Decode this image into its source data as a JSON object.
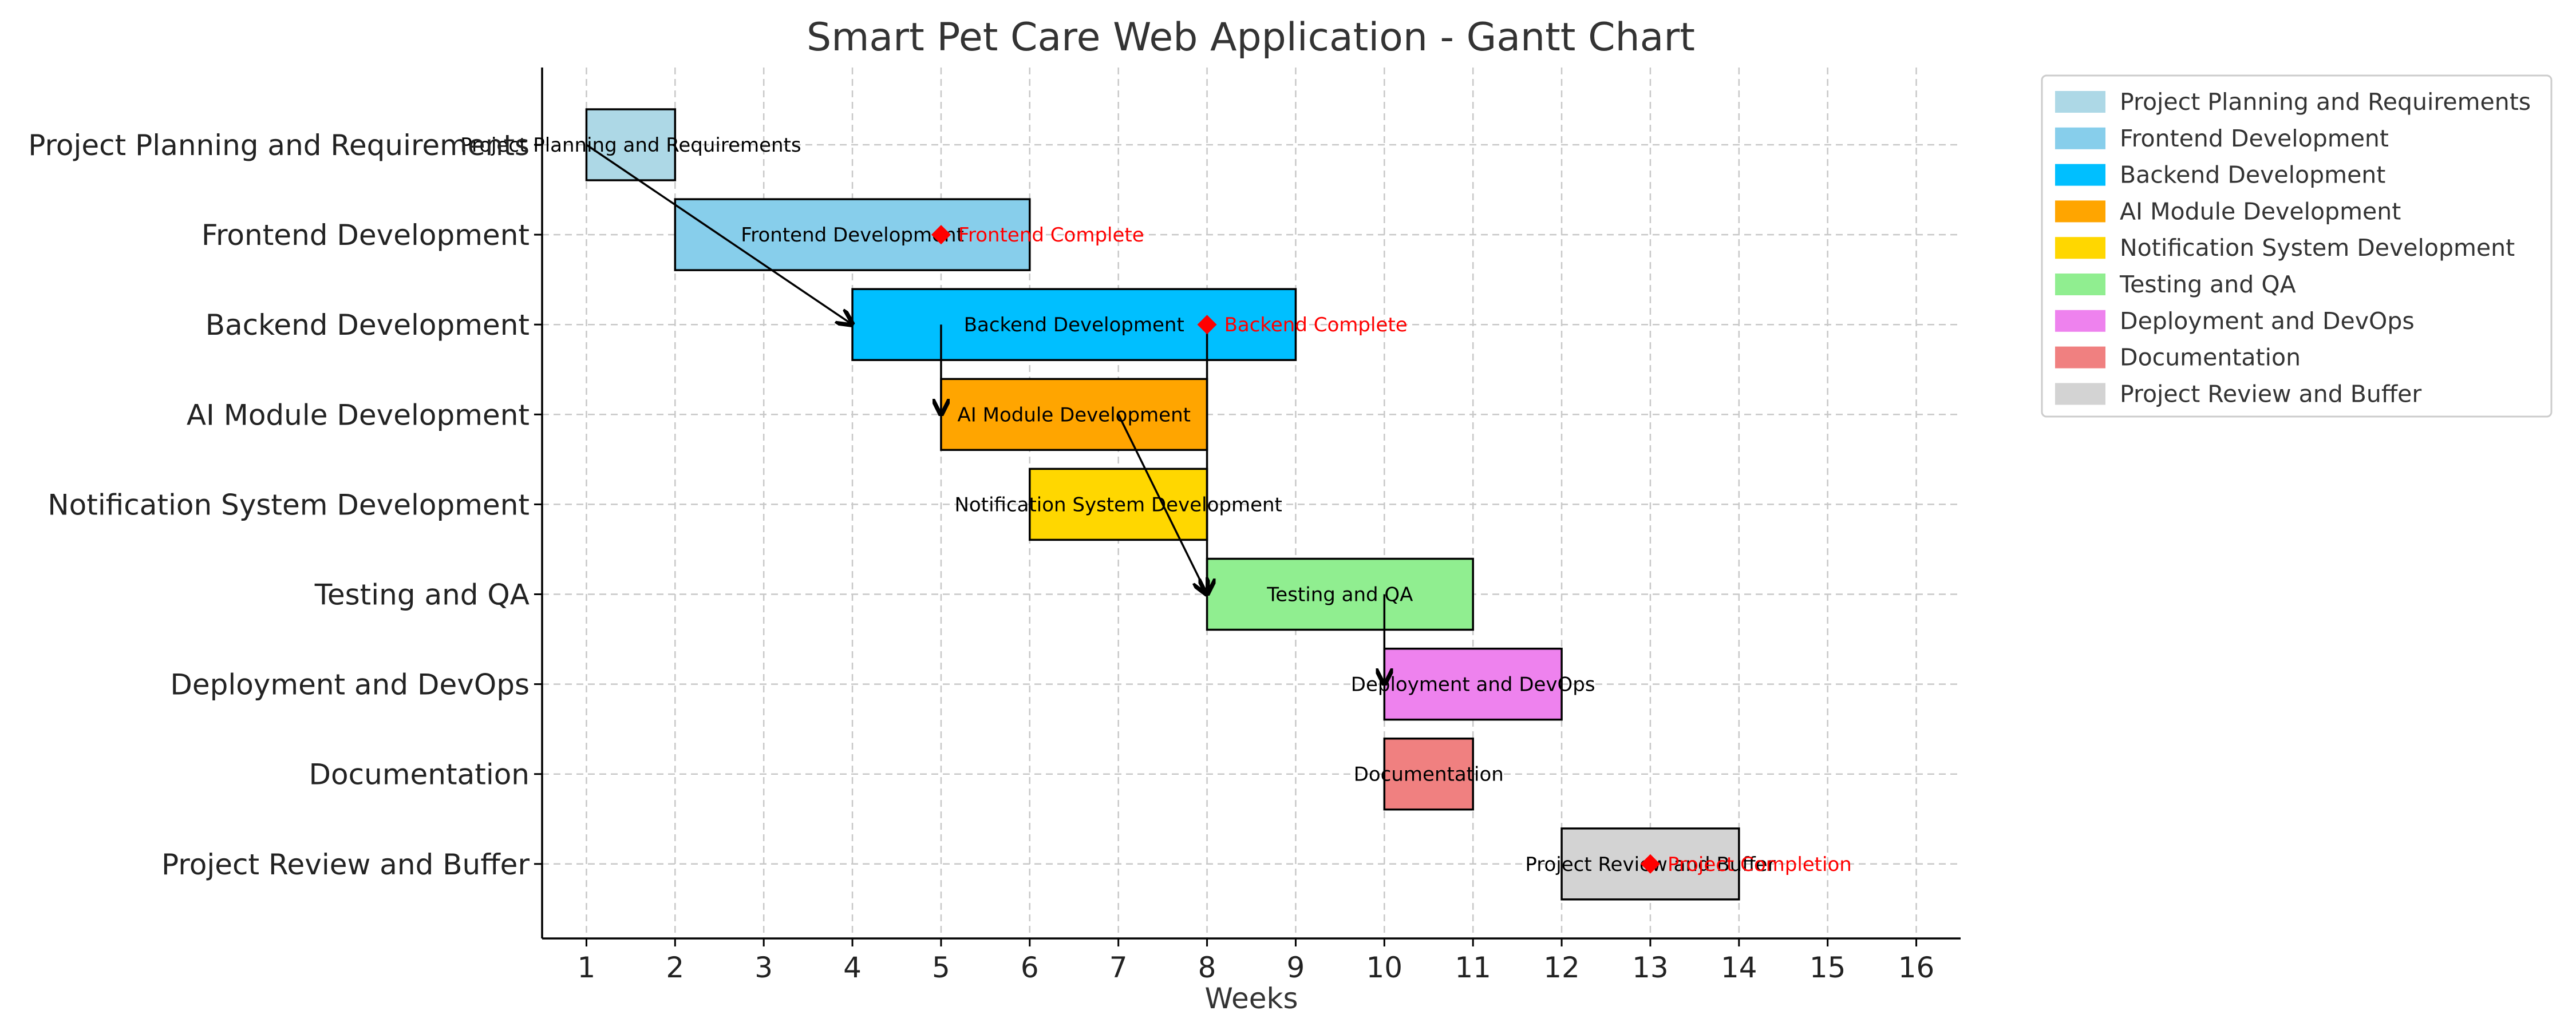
{
  "chart_data": {
    "type": "gantt",
    "title": "Smart Pet Care Web Application - Gantt Chart",
    "xlabel": "Weeks",
    "ylabel": "",
    "xlim": [
      0.5,
      16.5
    ],
    "xticks": [
      1,
      2,
      3,
      4,
      5,
      6,
      7,
      8,
      9,
      10,
      11,
      12,
      13,
      14,
      15,
      16
    ],
    "grid": true,
    "legend_position": "outside-top-right",
    "tasks": [
      {
        "name": "Project Planning and Requirements",
        "start": 1,
        "end": 2,
        "color": "#ADD8E6",
        "bar_label": "Project Planning and Requirements"
      },
      {
        "name": "Frontend Development",
        "start": 2,
        "end": 6,
        "color": "#87CEEB",
        "bar_label": "Frontend Development"
      },
      {
        "name": "Backend Development",
        "start": 4,
        "end": 9,
        "color": "#00BFFF",
        "bar_label": "Backend Development"
      },
      {
        "name": "AI Module Development",
        "start": 5,
        "end": 8,
        "color": "#FFA500",
        "bar_label": "AI Module Development"
      },
      {
        "name": "Notification System Development",
        "start": 6,
        "end": 8,
        "color": "#FFD700",
        "bar_label": "Notification System Development"
      },
      {
        "name": "Testing and QA",
        "start": 8,
        "end": 11,
        "color": "#90EE90",
        "bar_label": "Testing and QA"
      },
      {
        "name": "Deployment and DevOps",
        "start": 10,
        "end": 12,
        "color": "#EE82EE",
        "bar_label": "Deployment and DevOps"
      },
      {
        "name": "Documentation",
        "start": 10,
        "end": 11,
        "color": "#F08080",
        "bar_label": "Documentation"
      },
      {
        "name": "Project Review and Buffer",
        "start": 12,
        "end": 14,
        "color": "#D3D3D3",
        "bar_label": "Project Review and Buffer"
      }
    ],
    "milestones": [
      {
        "task": 1,
        "x": 5,
        "label": "Frontend Complete",
        "color": "#FF0000"
      },
      {
        "task": 2,
        "x": 8,
        "label": "Backend Complete",
        "color": "#FF0000"
      },
      {
        "task": 8,
        "x": 13,
        "label": "Project Completion",
        "color": "#FF0000"
      }
    ],
    "dependencies": [
      {
        "from_task": 0,
        "from_x": 1,
        "to_task": 2,
        "to_x": 4
      },
      {
        "from_task": 2,
        "from_x": 5,
        "to_task": 3,
        "to_x": 5
      },
      {
        "from_task": 3,
        "from_x": 7,
        "to_task": 5,
        "to_x": 8
      },
      {
        "from_task": 2,
        "from_x": 8,
        "to_task": 5,
        "to_x": 8
      },
      {
        "from_task": 5,
        "from_x": 10,
        "to_task": 6,
        "to_x": 10
      }
    ]
  }
}
